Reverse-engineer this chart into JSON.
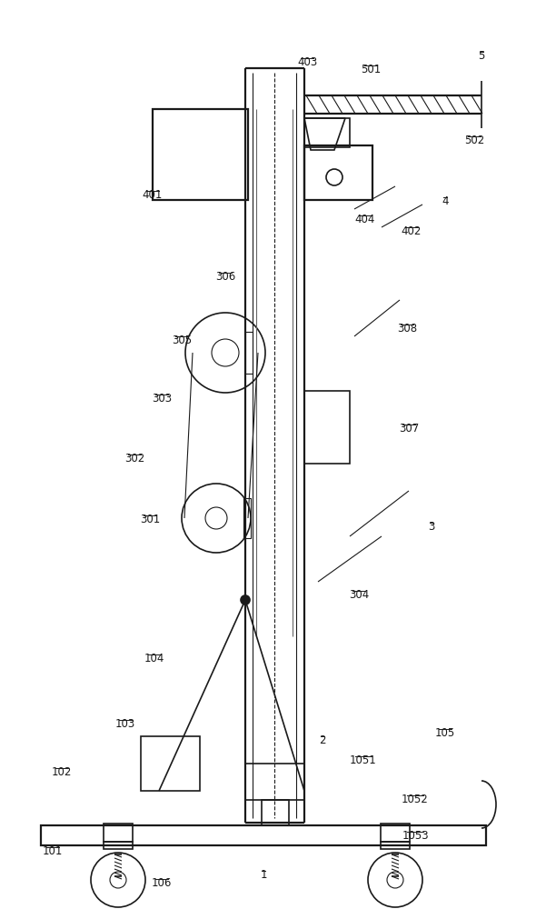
{
  "bg_color": "#ffffff",
  "lc": "#1a1a1a",
  "lw": 1.2,
  "tlw": 0.8,
  "thk": 1.6
}
